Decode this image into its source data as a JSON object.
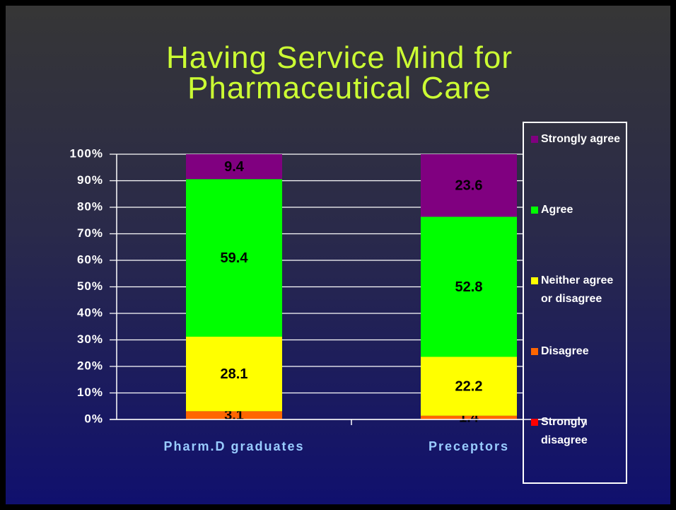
{
  "chart_data": {
    "type": "stacked_bar",
    "title": "Having Service Mind for Pharmaceutical Care",
    "categories": [
      "Pharm.D graduates",
      "Preceptors"
    ],
    "series": [
      {
        "name": "Strongly disagree",
        "color": "#ff0000",
        "values": [
          0,
          0
        ]
      },
      {
        "name": "Disagree",
        "color": "#ff6600",
        "values": [
          3.1,
          1.4
        ]
      },
      {
        "name": "Neither agree or disagree",
        "color": "#ffff00",
        "values": [
          28.1,
          22.2
        ]
      },
      {
        "name": "Agree",
        "color": "#00ff00",
        "values": [
          59.4,
          52.8
        ]
      },
      {
        "name": "Strongly agree",
        "color": "#800080",
        "values": [
          9.4,
          23.6
        ]
      }
    ],
    "ylim": [
      0,
      100
    ],
    "yticks": [
      {
        "value": 0,
        "label": "0%"
      },
      {
        "value": 10,
        "label": "10%"
      },
      {
        "value": 20,
        "label": "20%"
      },
      {
        "value": 30,
        "label": "30%"
      },
      {
        "value": 40,
        "label": "40%"
      },
      {
        "value": 50,
        "label": "50%"
      },
      {
        "value": 60,
        "label": "60%"
      },
      {
        "value": 70,
        "label": "70%"
      },
      {
        "value": 80,
        "label": "80%"
      },
      {
        "value": 90,
        "label": "90%"
      },
      {
        "value": 100,
        "label": "100%"
      }
    ],
    "grid": true,
    "legend": "right"
  }
}
